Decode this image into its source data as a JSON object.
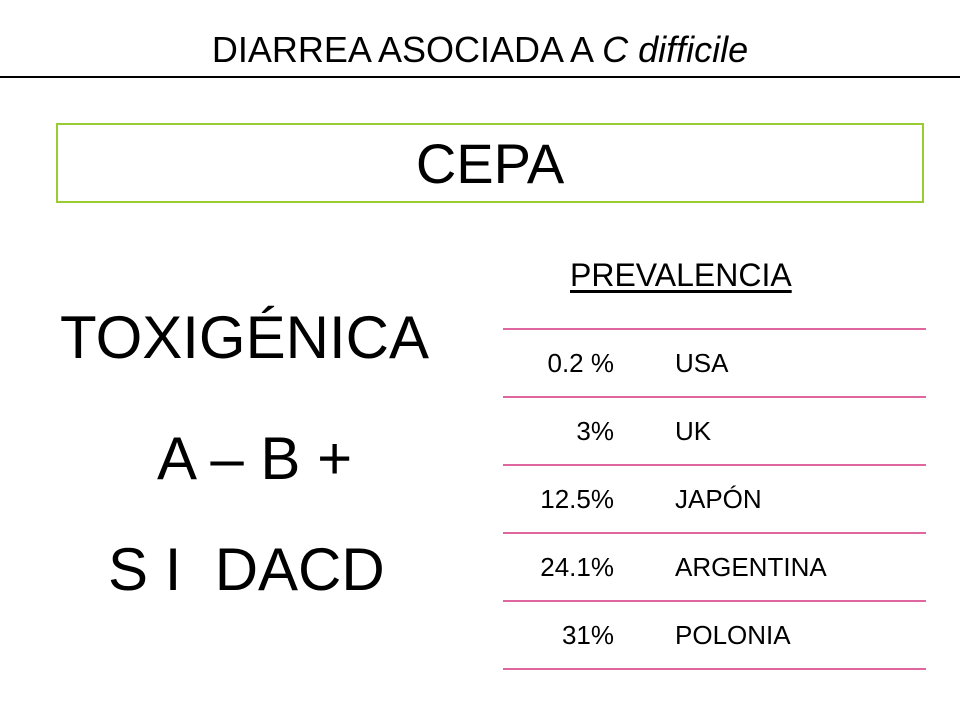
{
  "title": {
    "main": "DIARREA ASOCIADA A ",
    "italic": "C difficile"
  },
  "strain_box": {
    "label": "CEPA"
  },
  "left_panel": {
    "toxin_label": "TOXIGÉNICA",
    "toxin_profile": "A – B +",
    "dacd_label": "S I  DACD"
  },
  "prevalence": {
    "heading": "PREVALENCIA",
    "rows": [
      {
        "percent": "0.2 %",
        "country": "USA"
      },
      {
        "percent": "3%",
        "country": "UK"
      },
      {
        "percent": "12.5%",
        "country": "JAPÓN"
      },
      {
        "percent": "24.1%",
        "country": "ARGENTINA"
      },
      {
        "percent": "31%",
        "country": "POLONIA"
      }
    ]
  },
  "colors": {
    "box_border": "#99cc33",
    "table_rule": "#e0669f"
  }
}
